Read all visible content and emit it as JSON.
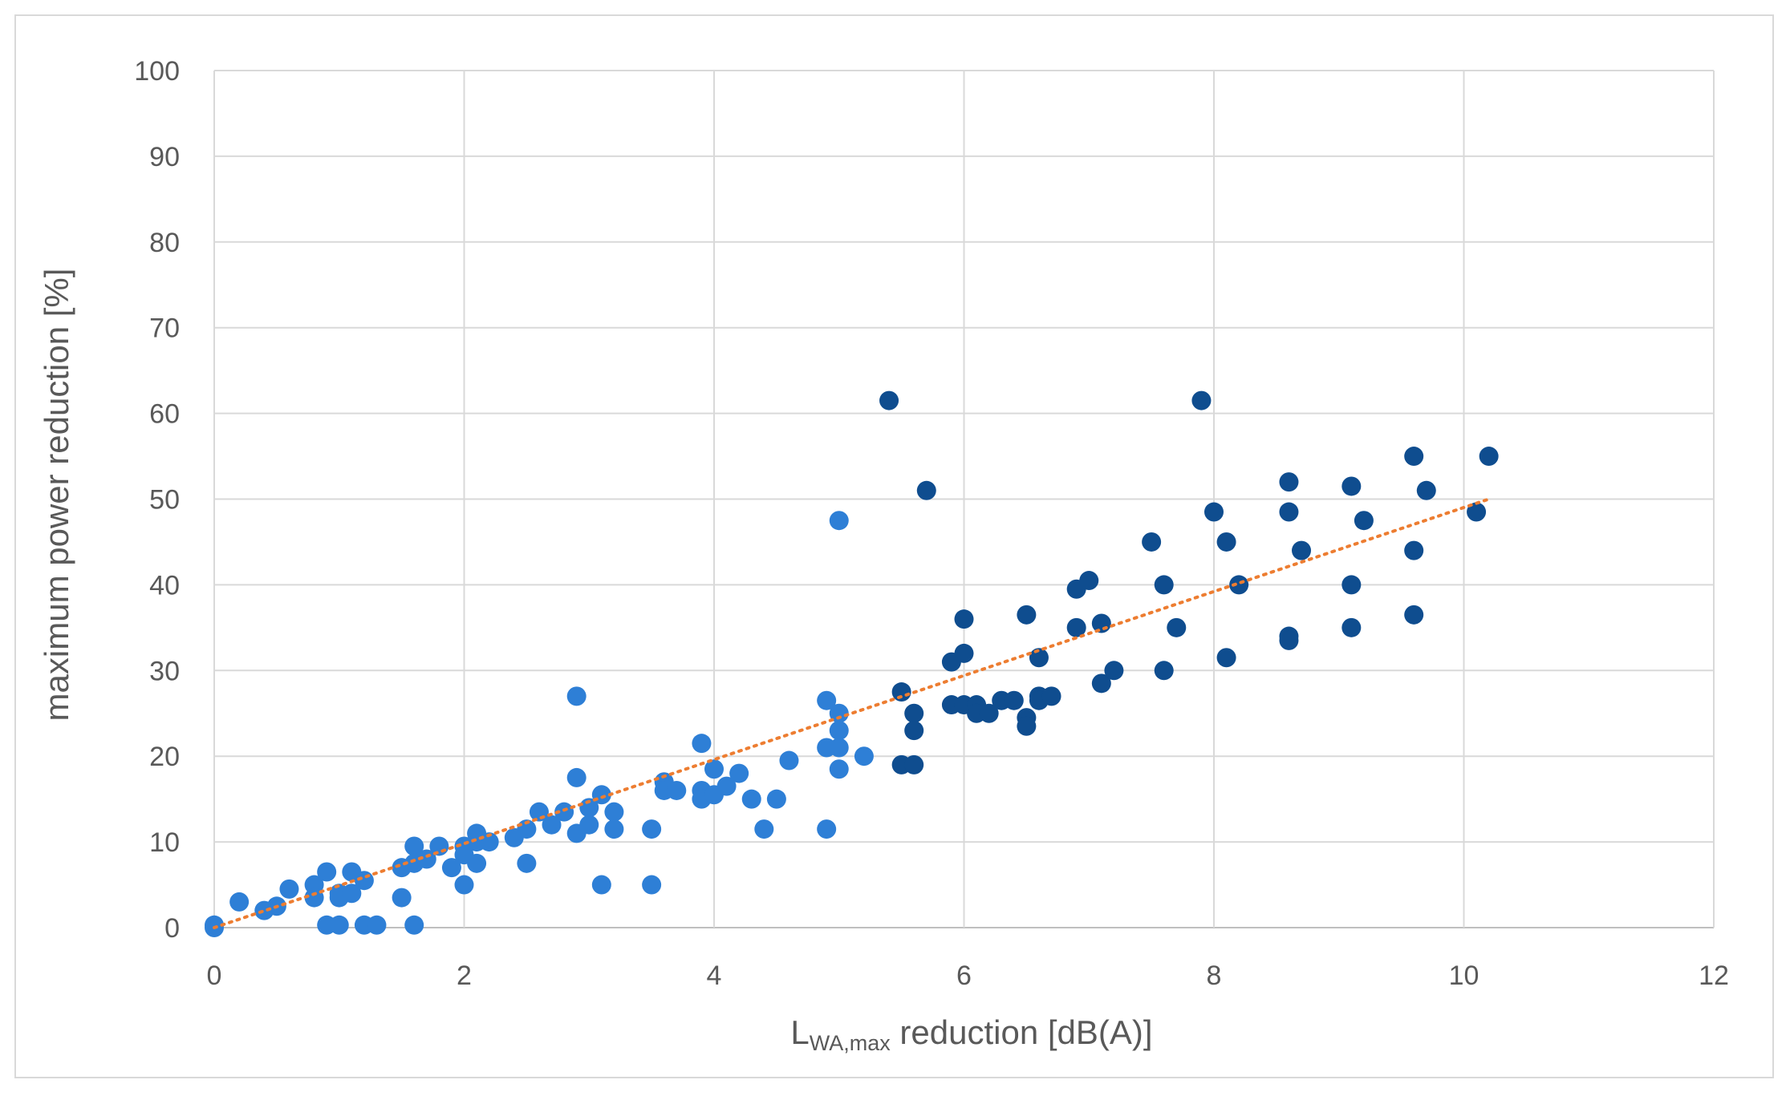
{
  "chart_data": {
    "type": "scatter",
    "title": "",
    "xlabel": {
      "main": "L",
      "sub": "WA,max",
      "rest": " reduction [dB(A)]"
    },
    "ylabel": "maximum power reduction [%]",
    "xlim": [
      0,
      12
    ],
    "ylim": [
      0,
      100
    ],
    "x_ticks": [
      0,
      2,
      4,
      6,
      8,
      10,
      12
    ],
    "y_ticks": [
      0,
      10,
      20,
      30,
      40,
      50,
      60,
      70,
      80,
      90,
      100
    ],
    "grid": true,
    "legend": "none",
    "point_color_light": "#2e7fd6",
    "point_color_dark": "#0f4d8f",
    "trendline": {
      "style": "dotted",
      "color": "#ed7d31",
      "x": [
        0,
        10.2
      ],
      "y": [
        0,
        50
      ]
    },
    "series": [
      {
        "points": [
          [
            0,
            0
          ],
          [
            0,
            0.3
          ],
          [
            0.2,
            3
          ],
          [
            0.4,
            2
          ],
          [
            0.5,
            2.5
          ],
          [
            0.6,
            4.5
          ],
          [
            0.8,
            5
          ],
          [
            0.8,
            3.5
          ],
          [
            0.9,
            6.5
          ],
          [
            0.9,
            0.3
          ],
          [
            1,
            4
          ],
          [
            1,
            3.5
          ],
          [
            1,
            0.3
          ],
          [
            1.1,
            6.5
          ],
          [
            1.1,
            4
          ],
          [
            1.2,
            5.5
          ],
          [
            1.2,
            0.3
          ],
          [
            1.3,
            0.3
          ],
          [
            1.5,
            7
          ],
          [
            1.5,
            3.5
          ],
          [
            1.6,
            9.5
          ],
          [
            1.6,
            7.5
          ],
          [
            1.6,
            0.3
          ],
          [
            1.7,
            8
          ],
          [
            1.8,
            9.5
          ],
          [
            1.9,
            7
          ],
          [
            2,
            9.5
          ],
          [
            2,
            8.5
          ],
          [
            2,
            5
          ],
          [
            2.1,
            11
          ],
          [
            2.1,
            10
          ],
          [
            2.1,
            7.5
          ],
          [
            2.2,
            10
          ],
          [
            2.4,
            10.5
          ],
          [
            2.5,
            11.5
          ],
          [
            2.5,
            7.5
          ],
          [
            2.6,
            13.5
          ],
          [
            2.7,
            12
          ],
          [
            2.8,
            13.5
          ],
          [
            2.9,
            27
          ],
          [
            2.9,
            17.5
          ],
          [
            2.9,
            11
          ],
          [
            3,
            14
          ],
          [
            3,
            12
          ],
          [
            3.1,
            15.5
          ],
          [
            3.1,
            5
          ],
          [
            3.2,
            13.5
          ],
          [
            3.2,
            11.5
          ],
          [
            3.5,
            11.5
          ],
          [
            3.5,
            5
          ],
          [
            3.6,
            17
          ],
          [
            3.6,
            16
          ],
          [
            3.7,
            16
          ],
          [
            3.9,
            21.5
          ],
          [
            3.9,
            16
          ],
          [
            3.9,
            15
          ],
          [
            4,
            18.5
          ],
          [
            4,
            15.5
          ],
          [
            4.1,
            16.5
          ],
          [
            4.2,
            18
          ],
          [
            4.3,
            15
          ],
          [
            4.4,
            11.5
          ],
          [
            4.5,
            15
          ],
          [
            4.6,
            19.5
          ],
          [
            4.9,
            26.5
          ],
          [
            4.9,
            21
          ],
          [
            4.9,
            11.5
          ],
          [
            5,
            47.5
          ],
          [
            5,
            25
          ],
          [
            5,
            23
          ],
          [
            5,
            21
          ],
          [
            5,
            18.5
          ],
          [
            5.2,
            20
          ]
        ]
      },
      {
        "points": [
          [
            5.4,
            61.5
          ],
          [
            5.5,
            27.5
          ],
          [
            5.5,
            19
          ],
          [
            5.6,
            25
          ],
          [
            5.6,
            23
          ],
          [
            5.6,
            19
          ],
          [
            5.7,
            51
          ],
          [
            5.9,
            31
          ],
          [
            5.9,
            26
          ],
          [
            6,
            36
          ],
          [
            6,
            32
          ],
          [
            6,
            26
          ],
          [
            6.1,
            26
          ],
          [
            6.1,
            25
          ],
          [
            6.2,
            25
          ],
          [
            6.3,
            26.5
          ],
          [
            6.4,
            26.5
          ],
          [
            6.5,
            36.5
          ],
          [
            6.5,
            24.5
          ],
          [
            6.5,
            23.5
          ],
          [
            6.6,
            31.5
          ],
          [
            6.6,
            27
          ],
          [
            6.6,
            26.5
          ],
          [
            6.7,
            27
          ],
          [
            6.9,
            39.5
          ],
          [
            6.9,
            35
          ],
          [
            7,
            40.5
          ],
          [
            7.1,
            35.5
          ],
          [
            7.1,
            28.5
          ],
          [
            7.2,
            30
          ],
          [
            7.5,
            45
          ],
          [
            7.6,
            40
          ],
          [
            7.6,
            30
          ],
          [
            7.7,
            35
          ],
          [
            7.9,
            61.5
          ],
          [
            8,
            48.5
          ],
          [
            8.1,
            45
          ],
          [
            8.1,
            31.5
          ],
          [
            8.2,
            40
          ],
          [
            8.6,
            52
          ],
          [
            8.6,
            48.5
          ],
          [
            8.6,
            34
          ],
          [
            8.6,
            33.5
          ],
          [
            8.7,
            44
          ],
          [
            9.1,
            51.5
          ],
          [
            9.1,
            40
          ],
          [
            9.1,
            35
          ],
          [
            9.2,
            47.5
          ],
          [
            9.6,
            55
          ],
          [
            9.6,
            44
          ],
          [
            9.6,
            36.5
          ],
          [
            9.7,
            51
          ],
          [
            10.1,
            48.5
          ],
          [
            10.2,
            55
          ]
        ]
      }
    ]
  }
}
